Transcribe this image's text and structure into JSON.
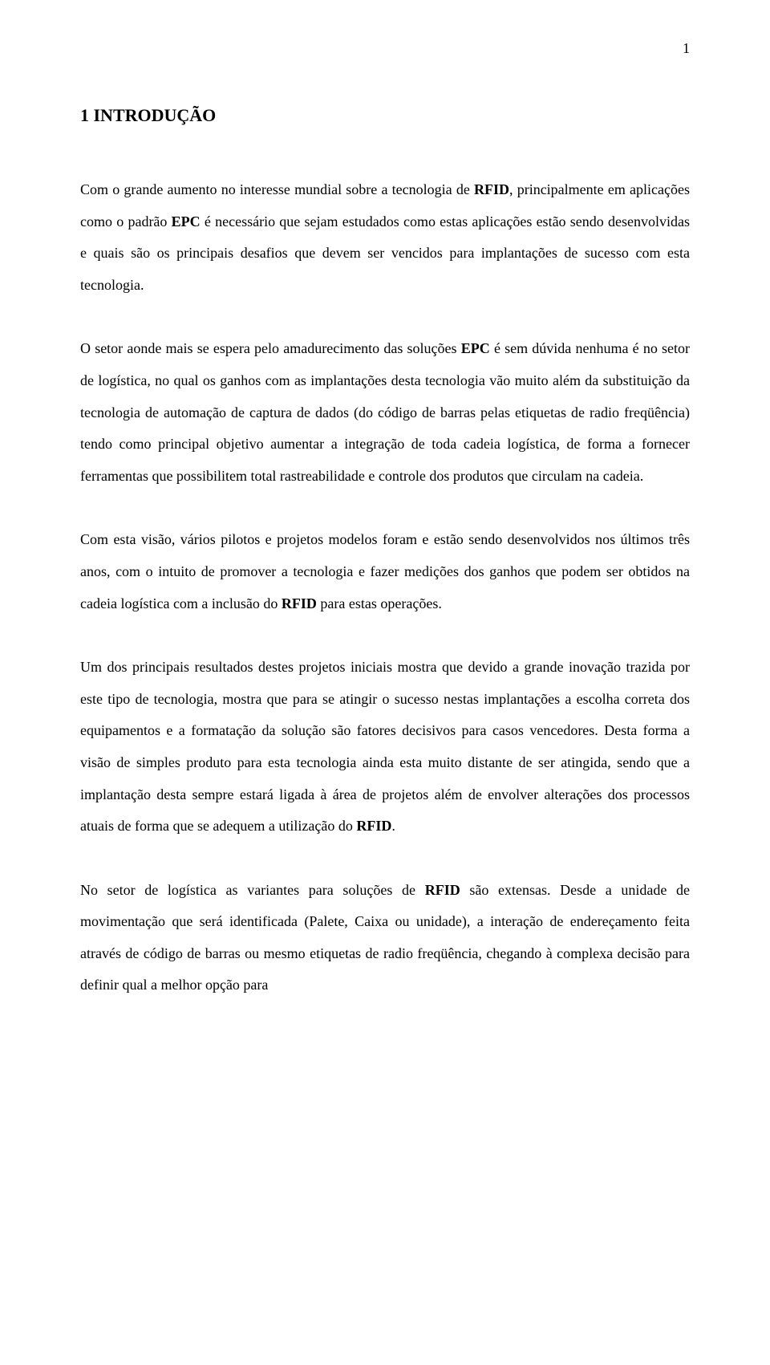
{
  "page": {
    "number": "1",
    "background_color": "#ffffff",
    "text_color": "#000000",
    "font_family": "Times New Roman",
    "body_fontsize": 18,
    "title_fontsize": 22,
    "line_height": 2.2
  },
  "section": {
    "title": "1 INTRODUÇÃO"
  },
  "paragraphs": {
    "p1": {
      "before_rfid": "Com o grande aumento no interesse mundial sobre a tecnologia de ",
      "rfid": "RFID",
      "after_rfid": ", principalmente em aplicações como o padrão ",
      "epc": "EPC",
      "after_epc": " é necessário que sejam estudados como estas aplicações estão sendo desenvolvidas e quais são os principais desafios que devem ser vencidos para implantações de sucesso com esta tecnologia."
    },
    "p2": {
      "before_epc": "O setor aonde mais se espera pelo amadurecimento das soluções ",
      "epc": "EPC",
      "after_epc": " é sem dúvida nenhuma é no setor de logística, no qual os ganhos com as implantações desta tecnologia vão muito além da substituição da tecnologia de automação de captura de dados (do código de barras pelas etiquetas de radio freqüência) tendo como principal objetivo aumentar a integração de toda cadeia logística, de forma a fornecer ferramentas que possibilitem total rastreabilidade e controle dos produtos que circulam na cadeia."
    },
    "p3": {
      "before_rfid": "Com esta visão, vários pilotos e projetos modelos foram e estão sendo desenvolvidos nos últimos três anos, com o intuito de promover a tecnologia e fazer medições dos ganhos que podem ser obtidos na cadeia logística com a inclusão do ",
      "rfid": "RFID",
      "after_rfid": " para estas operações."
    },
    "p4": {
      "before_rfid": "Um dos principais resultados destes projetos iniciais mostra que devido a grande inovação trazida por este tipo de tecnologia, mostra que para se atingir o sucesso nestas implantações a escolha correta dos equipamentos e a formatação da solução são fatores decisivos para casos vencedores. Desta forma a visão de simples produto para esta tecnologia ainda esta muito distante de ser atingida, sendo que a implantação desta sempre estará ligada à área de projetos além de envolver alterações dos processos atuais de forma que se adequem a utilização do ",
      "rfid": "RFID",
      "after_rfid": "."
    },
    "p5": {
      "before_rfid": "No setor de logística as variantes para soluções de ",
      "rfid": "RFID",
      "after_rfid": " são extensas. Desde a unidade de movimentação que será identificada (Palete, Caixa ou unidade), a interação de endereçamento feita através de código de barras ou mesmo etiquetas de radio freqüência, chegando à complexa decisão para definir qual a melhor opção para"
    }
  }
}
